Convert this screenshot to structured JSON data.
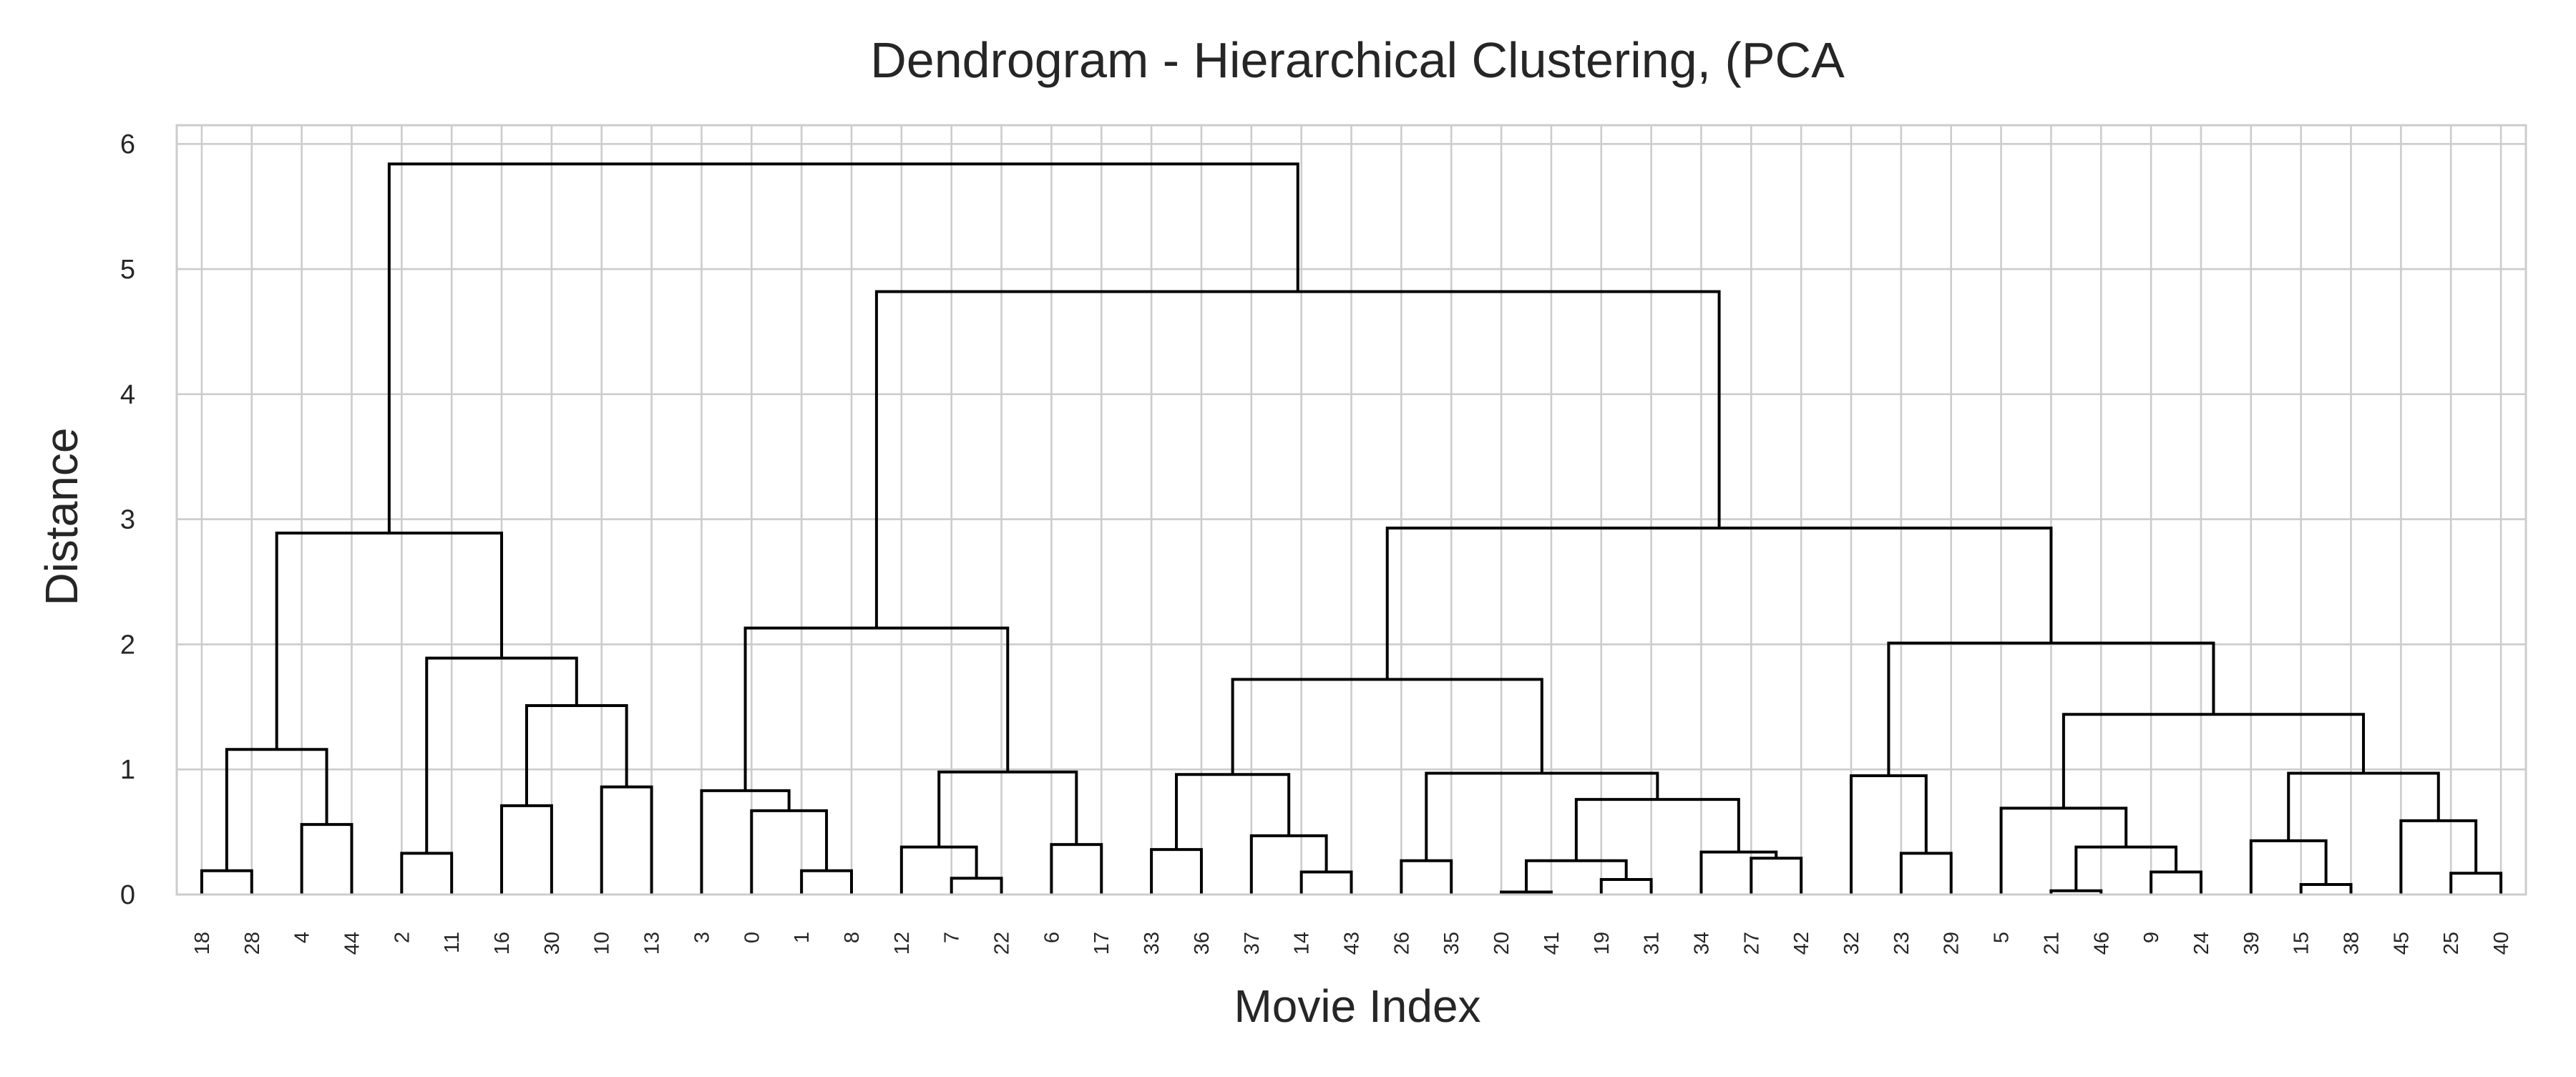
{
  "chart_data": {
    "type": "dendrogram",
    "title": "Dendrogram - Hierarchical Clustering, (PCA",
    "xlabel": "Movie Index",
    "ylabel": "Distance",
    "ylim": [
      0,
      6.15
    ],
    "yticks": [
      0,
      1,
      2,
      3,
      4,
      5,
      6
    ],
    "grid": true,
    "leaves": [
      "18",
      "28",
      "4",
      "44",
      "2",
      "11",
      "16",
      "30",
      "10",
      "13",
      "3",
      "0",
      "1",
      "8",
      "12",
      "7",
      "22",
      "6",
      "17",
      "33",
      "36",
      "37",
      "14",
      "43",
      "26",
      "35",
      "20",
      "41",
      "19",
      "31",
      "34",
      "27",
      "42",
      "32",
      "23",
      "29",
      "5",
      "21",
      "46",
      "9",
      "24",
      "39",
      "15",
      "38",
      "45",
      "25",
      "40"
    ],
    "merges": [
      {
        "left": "18",
        "right": "28",
        "height": 0.19
      },
      {
        "left": "4",
        "right": "44",
        "height": 0.56
      },
      {
        "left": "18,28",
        "right": "4,44",
        "height": 1.16
      },
      {
        "left": "2",
        "right": "11",
        "height": 0.33
      },
      {
        "left": "16",
        "right": "30",
        "height": 0.71
      },
      {
        "left": "10",
        "right": "13",
        "height": 0.86
      },
      {
        "left": "16,30",
        "right": "10,13",
        "height": 1.51
      },
      {
        "left": "2,11",
        "right": "16,30,10,13",
        "height": 1.89
      },
      {
        "left": "18,28,4,44",
        "right": "2,11,16,30,10,13",
        "height": 2.89
      },
      {
        "left": "1",
        "right": "8",
        "height": 0.19
      },
      {
        "left": "0",
        "right": "1,8",
        "height": 0.67
      },
      {
        "left": "3",
        "right": "0,1,8",
        "height": 0.83
      },
      {
        "left": "7",
        "right": "22",
        "height": 0.13
      },
      {
        "left": "12",
        "right": "7,22",
        "height": 0.38
      },
      {
        "left": "6",
        "right": "17",
        "height": 0.4
      },
      {
        "left": "12,7,22",
        "right": "6,17",
        "height": 0.98
      },
      {
        "left": "3,0,1,8",
        "right": "12,7,22,6,17",
        "height": 2.13
      },
      {
        "left": "14",
        "right": "43",
        "height": 0.18
      },
      {
        "left": "33",
        "right": "36",
        "height": 0.36
      },
      {
        "left": "37",
        "right": "14,43",
        "height": 0.47
      },
      {
        "left": "33,36",
        "right": "37,14,43",
        "height": 0.96
      },
      {
        "left": "26",
        "right": "35",
        "height": 0.27
      },
      {
        "left": "20",
        "right": "41",
        "height": 0.02
      },
      {
        "left": "19",
        "right": "31",
        "height": 0.12
      },
      {
        "left": "20,41",
        "right": "19,31",
        "height": 0.27
      },
      {
        "left": "27",
        "right": "42",
        "height": 0.29
      },
      {
        "left": "34",
        "right": "27,42",
        "height": 0.34
      },
      {
        "left": "20,41,19,31",
        "right": "34,27,42",
        "height": 0.76
      },
      {
        "left": "26,35",
        "right": "20,41,19,31,34,27,42",
        "height": 0.97
      },
      {
        "left": "33,36,37,14,43",
        "right": "26,35,20,41,19,31,34,27,42",
        "height": 1.72
      },
      {
        "left": "23",
        "right": "29",
        "height": 0.33
      },
      {
        "left": "32",
        "right": "23,29",
        "height": 0.95
      },
      {
        "left": "21",
        "right": "46",
        "height": 0.03
      },
      {
        "left": "9",
        "right": "24",
        "height": 0.18
      },
      {
        "left": "21,46",
        "right": "9,24",
        "height": 0.38
      },
      {
        "left": "5",
        "right": "21,46,9,24",
        "height": 0.69
      },
      {
        "left": "15",
        "right": "38",
        "height": 0.08
      },
      {
        "left": "39",
        "right": "15,38",
        "height": 0.43
      },
      {
        "left": "25",
        "right": "40",
        "height": 0.17
      },
      {
        "left": "45",
        "right": "25,40",
        "height": 0.59
      },
      {
        "left": "39,15,38",
        "right": "45,25,40",
        "height": 0.97
      },
      {
        "left": "5,21,46,9,24",
        "right": "39,15,38,45,25,40",
        "height": 1.44
      },
      {
        "left": "32,23,29",
        "right": "5,21,46,9,24,39,15,38,45,25,40",
        "height": 2.01
      },
      {
        "left": "33,36,37,14,43,26,35,20,41,19,31,34,27,42",
        "right": "32,23,29,5,21,46,9,24,39,15,38,45,25,40",
        "height": 2.93
      },
      {
        "left": "3,0,1,8,12,7,22,6,17",
        "right": "33,36,37,14,43,26,35,20,41,19,31,34,27,42,32,23,29,5,21,46,9,24,39,15,38,45,25,40",
        "height": 4.82
      },
      {
        "left": "18,28,4,44,2,11,16,30,10,13",
        "right": "3,0,1,8,12,7,22,6,17,33,36,37,14,43,26,35,20,41,19,31,34,27,42,32,23,29,5,21,46,9,24,39,15,38,45,25,40",
        "height": 5.84
      }
    ],
    "colors": {
      "link": "#000000",
      "grid": "#cccccc",
      "text": "#262626"
    }
  }
}
